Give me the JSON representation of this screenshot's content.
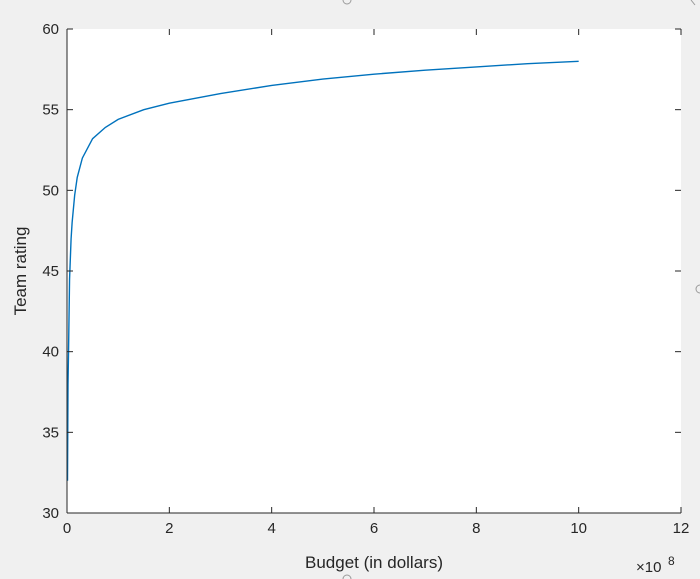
{
  "chart_data": {
    "type": "line",
    "title": "",
    "xlabel": "Budget (in dollars)",
    "ylabel": "Team rating",
    "xlim": [
      0,
      1200000000
    ],
    "ylim": [
      30,
      60
    ],
    "x_exponent_label": "×10",
    "x_exponent_power": "8",
    "x_ticks": [
      0,
      200000000,
      400000000,
      600000000,
      800000000,
      1000000000,
      1200000000
    ],
    "x_tick_labels": [
      "0",
      "2",
      "4",
      "6",
      "8",
      "10",
      "12"
    ],
    "y_ticks": [
      30,
      35,
      40,
      45,
      50,
      55,
      60
    ],
    "y_tick_labels": [
      "30",
      "35",
      "40",
      "45",
      "50",
      "55",
      "60"
    ],
    "grid": false,
    "series": [
      {
        "color": "#0072bd",
        "x": [
          1000000,
          2000000,
          3000000,
          5000000,
          8000000,
          10000000,
          15000000,
          20000000,
          30000000,
          50000000,
          75000000,
          100000000,
          150000000,
          200000000,
          300000000,
          400000000,
          500000000,
          600000000,
          700000000,
          800000000,
          900000000,
          1000000000
        ],
        "y": [
          32.0,
          38.0,
          40.0,
          44.5,
          47.0,
          48.0,
          49.7,
          50.8,
          52.0,
          53.2,
          53.9,
          54.4,
          55.0,
          55.4,
          56.0,
          56.5,
          56.9,
          57.2,
          57.45,
          57.65,
          57.85,
          58.0
        ]
      }
    ]
  }
}
